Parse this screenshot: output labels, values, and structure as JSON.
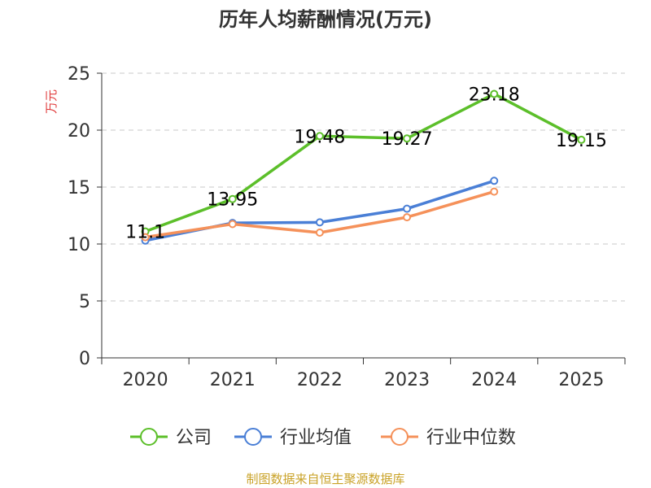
{
  "chart_data": {
    "type": "line",
    "title": "历年人均薪酬情况(万元)",
    "ylabel": "万元",
    "xlabel": "",
    "categories": [
      "2020",
      "2021",
      "2022",
      "2023",
      "2024",
      "2025"
    ],
    "ylim": [
      0,
      25
    ],
    "yticks": [
      "0",
      "5",
      "10",
      "15",
      "20",
      "25"
    ],
    "grid": true,
    "legend_position": "bottom",
    "series": [
      {
        "name": "公司",
        "color": "#5cbf2a",
        "values": [
          11.1,
          13.95,
          19.48,
          19.27,
          23.18,
          19.15
        ],
        "labels": [
          "11.1",
          "13.95",
          "19.48",
          "19.27",
          "23.18",
          "19.15"
        ]
      },
      {
        "name": "行业均值",
        "color": "#4a7fd6",
        "values": [
          10.3,
          11.85,
          11.9,
          13.1,
          15.55,
          null
        ],
        "labels": []
      },
      {
        "name": "行业中位数",
        "color": "#f5915a",
        "values": [
          10.6,
          11.75,
          11.0,
          12.35,
          14.6,
          null
        ],
        "labels": []
      }
    ]
  },
  "footer": "制图数据来自恒生聚源数据库"
}
